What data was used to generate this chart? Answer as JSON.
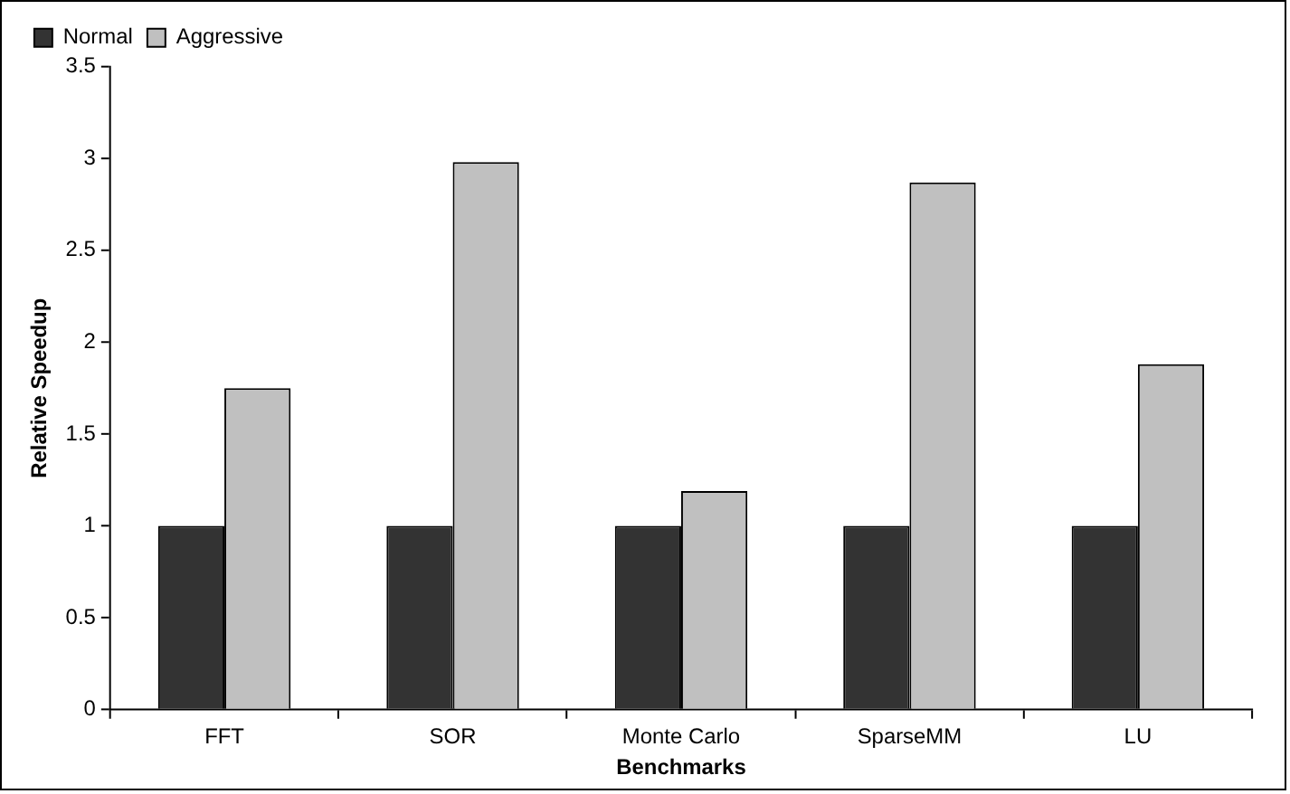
{
  "chart_data": {
    "type": "bar",
    "xlabel": "Benchmarks",
    "ylabel": "Relative Speedup",
    "categories": [
      "FFT",
      "SOR",
      "Monte Carlo",
      "SparseMM",
      "LU"
    ],
    "series": [
      {
        "name": "Normal",
        "color": "#333333",
        "values": [
          1,
          1,
          1,
          1,
          1
        ]
      },
      {
        "name": "Aggressive",
        "color": "#c0c0c0",
        "values": [
          1.75,
          2.98,
          1.19,
          2.87,
          1.88
        ]
      }
    ],
    "ylim": [
      0,
      3.5
    ],
    "yticks": [
      0,
      0.5,
      1,
      1.5,
      2,
      2.5,
      3,
      3.5
    ],
    "grid": false,
    "legend": "top left"
  }
}
